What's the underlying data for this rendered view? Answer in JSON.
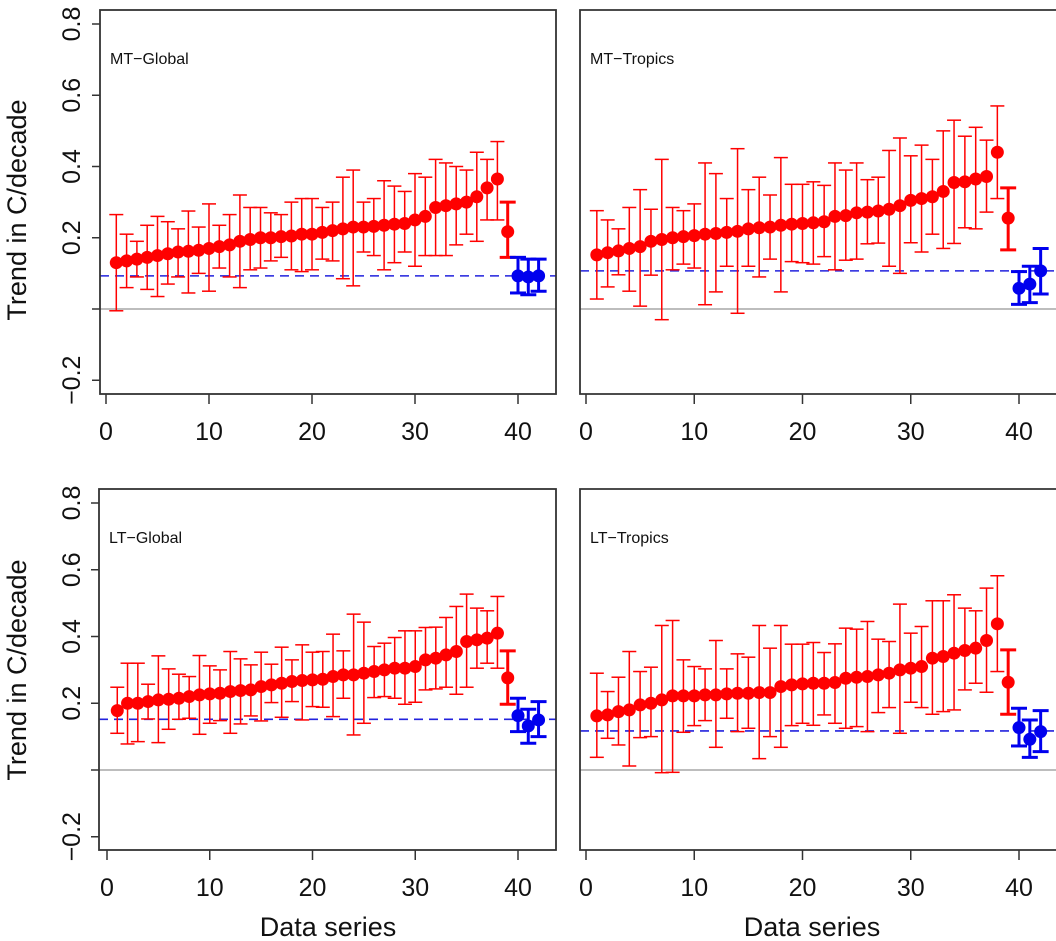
{
  "chart_data": {
    "type": "scatter",
    "layout": "2x2 panels",
    "shared": {
      "ylabel": "Trend in C/decade",
      "xlabel": "Data series",
      "ylim": [
        -0.25,
        0.82
      ],
      "xlim": [
        -0.5,
        43
      ],
      "yticks": [
        -0.2,
        0,
        0.2,
        0.4,
        0.6,
        0.8
      ],
      "ytick_labels": [
        "−0.2",
        "",
        "0.2",
        "0.4",
        "0.6",
        "0.8"
      ],
      "xticks": [
        0,
        10,
        20,
        30,
        40
      ],
      "xtick_labels": [
        "0",
        "10",
        "20",
        "30",
        "40"
      ],
      "zero_line": 0,
      "colors": {
        "models": "#ff0000",
        "observations": "#0000ee",
        "zero_line": "#bdbdbd",
        "reference_line": "#2222dd",
        "frame": "#333333"
      },
      "series_description": {
        "models": "points 1-38 red circles with thin error bars; point 39 red circle with thick error bar",
        "observations": "points 40-42 blue circles with thick error bars",
        "reference_line": "blue dashed horizontal line at observational mean"
      }
    },
    "panels": [
      {
        "title": "MT−Global",
        "position": "top-left",
        "ref_line": 0.093,
        "values": [
          0.13,
          0.135,
          0.14,
          0.145,
          0.15,
          0.155,
          0.16,
          0.162,
          0.165,
          0.17,
          0.175,
          0.18,
          0.19,
          0.195,
          0.2,
          0.2,
          0.203,
          0.205,
          0.21,
          0.21,
          0.215,
          0.22,
          0.225,
          0.23,
          0.23,
          0.232,
          0.235,
          0.238,
          0.24,
          0.25,
          0.26,
          0.285,
          0.29,
          0.295,
          0.3,
          0.315,
          0.34,
          0.365,
          0.217,
          0.093,
          0.09,
          0.093
        ],
        "lower": [
          -0.005,
          0.06,
          0.09,
          0.055,
          0.035,
          0.07,
          0.09,
          0.045,
          0.1,
          0.05,
          0.115,
          0.09,
          0.06,
          0.11,
          0.115,
          0.135,
          0.145,
          0.11,
          0.105,
          0.11,
          0.14,
          0.135,
          0.085,
          0.065,
          0.16,
          0.15,
          0.11,
          0.13,
          0.16,
          0.12,
          0.15,
          0.15,
          0.15,
          0.18,
          0.21,
          0.19,
          0.25,
          0.25,
          0.145,
          0.045,
          0.04,
          0.05
        ],
        "upper": [
          0.265,
          0.21,
          0.19,
          0.235,
          0.26,
          0.245,
          0.225,
          0.275,
          0.23,
          0.295,
          0.235,
          0.265,
          0.32,
          0.285,
          0.285,
          0.27,
          0.265,
          0.3,
          0.31,
          0.31,
          0.285,
          0.3,
          0.37,
          0.39,
          0.3,
          0.31,
          0.36,
          0.345,
          0.33,
          0.38,
          0.37,
          0.42,
          0.41,
          0.4,
          0.39,
          0.44,
          0.42,
          0.47,
          0.3,
          0.145,
          0.14,
          0.14
        ]
      },
      {
        "title": "MT−Tropics",
        "position": "top-right",
        "ref_line": 0.107,
        "values": [
          0.152,
          0.158,
          0.163,
          0.17,
          0.175,
          0.19,
          0.195,
          0.2,
          0.203,
          0.206,
          0.21,
          0.212,
          0.215,
          0.218,
          0.225,
          0.228,
          0.23,
          0.235,
          0.238,
          0.24,
          0.242,
          0.245,
          0.26,
          0.262,
          0.27,
          0.272,
          0.275,
          0.28,
          0.29,
          0.305,
          0.31,
          0.315,
          0.33,
          0.355,
          0.357,
          0.365,
          0.372,
          0.44,
          0.255,
          0.058,
          0.07,
          0.107
        ],
        "lower": [
          0.028,
          0.062,
          0.096,
          0.05,
          0.008,
          0.095,
          -0.03,
          0.11,
          0.126,
          0.115,
          0.012,
          0.048,
          0.12,
          -0.012,
          0.12,
          0.09,
          0.14,
          0.048,
          0.133,
          0.13,
          0.126,
          0.147,
          0.11,
          0.137,
          0.14,
          0.183,
          0.185,
          0.12,
          0.1,
          0.186,
          0.16,
          0.21,
          0.17,
          0.184,
          0.228,
          0.225,
          0.272,
          0.31,
          0.166,
          0.013,
          0.018,
          0.042
        ],
        "upper": [
          0.276,
          0.25,
          0.225,
          0.285,
          0.335,
          0.28,
          0.42,
          0.285,
          0.276,
          0.295,
          0.41,
          0.38,
          0.31,
          0.45,
          0.335,
          0.37,
          0.32,
          0.425,
          0.35,
          0.35,
          0.357,
          0.347,
          0.41,
          0.39,
          0.41,
          0.363,
          0.37,
          0.445,
          0.48,
          0.43,
          0.46,
          0.42,
          0.5,
          0.53,
          0.485,
          0.51,
          0.474,
          0.57,
          0.34,
          0.105,
          0.12,
          0.17
        ]
      },
      {
        "title": "LT−Global",
        "position": "bottom-left",
        "ref_line": 0.152,
        "values": [
          0.178,
          0.2,
          0.2,
          0.205,
          0.21,
          0.212,
          0.215,
          0.22,
          0.225,
          0.228,
          0.23,
          0.235,
          0.238,
          0.24,
          0.25,
          0.255,
          0.26,
          0.265,
          0.268,
          0.27,
          0.272,
          0.28,
          0.285,
          0.285,
          0.29,
          0.295,
          0.3,
          0.305,
          0.305,
          0.31,
          0.33,
          0.335,
          0.345,
          0.355,
          0.385,
          0.39,
          0.395,
          0.41,
          0.276,
          0.163,
          0.132,
          0.15
        ],
        "lower": [
          0.11,
          0.078,
          0.085,
          0.153,
          0.082,
          0.122,
          0.152,
          0.155,
          0.107,
          0.14,
          0.148,
          0.11,
          0.138,
          0.162,
          0.147,
          0.202,
          0.158,
          0.205,
          0.15,
          0.19,
          0.188,
          0.16,
          0.215,
          0.105,
          0.14,
          0.217,
          0.22,
          0.215,
          0.197,
          0.203,
          0.24,
          0.243,
          0.248,
          0.227,
          0.248,
          0.305,
          0.32,
          0.305,
          0.197,
          0.115,
          0.08,
          0.1
        ],
        "upper": [
          0.248,
          0.32,
          0.32,
          0.257,
          0.342,
          0.303,
          0.287,
          0.28,
          0.343,
          0.312,
          0.3,
          0.355,
          0.333,
          0.315,
          0.353,
          0.317,
          0.368,
          0.33,
          0.375,
          0.353,
          0.355,
          0.407,
          0.357,
          0.467,
          0.443,
          0.37,
          0.38,
          0.397,
          0.417,
          0.417,
          0.427,
          0.428,
          0.457,
          0.49,
          0.527,
          0.485,
          0.477,
          0.52,
          0.357,
          0.215,
          0.182,
          0.205
        ]
      },
      {
        "title": "LT−Tropics",
        "position": "bottom-right",
        "ref_line": 0.117,
        "values": [
          0.162,
          0.165,
          0.175,
          0.18,
          0.195,
          0.2,
          0.21,
          0.222,
          0.222,
          0.222,
          0.225,
          0.225,
          0.228,
          0.23,
          0.23,
          0.232,
          0.232,
          0.25,
          0.255,
          0.258,
          0.26,
          0.26,
          0.262,
          0.275,
          0.278,
          0.28,
          0.285,
          0.29,
          0.3,
          0.305,
          0.31,
          0.335,
          0.34,
          0.35,
          0.358,
          0.365,
          0.388,
          0.438,
          0.263,
          0.127,
          0.092,
          0.115
        ],
        "lower": [
          0.038,
          0.095,
          0.075,
          0.012,
          0.097,
          0.1,
          -0.008,
          -0.007,
          0.113,
          0.133,
          0.148,
          0.068,
          0.155,
          0.115,
          0.125,
          0.034,
          0.1,
          0.068,
          0.133,
          0.14,
          0.134,
          0.165,
          0.14,
          0.125,
          0.13,
          0.115,
          0.172,
          0.187,
          0.11,
          0.203,
          0.187,
          0.167,
          0.175,
          0.18,
          0.24,
          0.26,
          0.233,
          0.295,
          0.167,
          0.072,
          0.038,
          0.055
        ],
        "upper": [
          0.29,
          0.235,
          0.278,
          0.355,
          0.295,
          0.308,
          0.433,
          0.448,
          0.33,
          0.31,
          0.303,
          0.388,
          0.303,
          0.348,
          0.338,
          0.433,
          0.365,
          0.433,
          0.377,
          0.377,
          0.382,
          0.352,
          0.378,
          0.425,
          0.422,
          0.445,
          0.392,
          0.385,
          0.497,
          0.41,
          0.43,
          0.507,
          0.507,
          0.525,
          0.485,
          0.477,
          0.545,
          0.582,
          0.36,
          0.185,
          0.15,
          0.178
        ]
      }
    ]
  }
}
